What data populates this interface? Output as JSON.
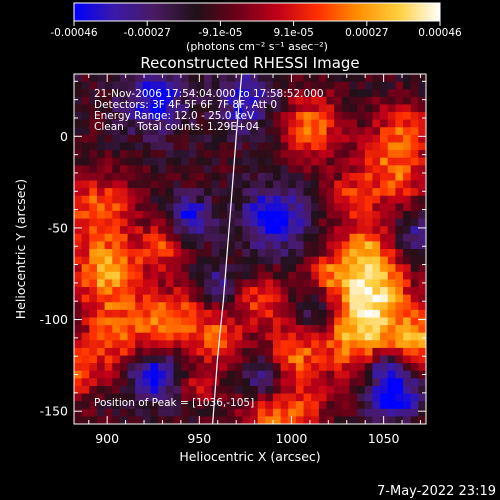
{
  "colorbar": {
    "tick_labels": [
      "-0.00046",
      "-0.00027",
      "-9.1e-05",
      "9.1e-05",
      "0.00027",
      "0.00046"
    ],
    "unit_label": "(photons cm⁻² s⁻¹ asec⁻²)",
    "colors": [
      "#0000ff",
      "#3a1aa8",
      "#4a1a60",
      "#201018",
      "#6a0018",
      "#c00018",
      "#ff3000",
      "#ff9000",
      "#ffd040",
      "#ffffff"
    ]
  },
  "chart_data": {
    "type": "heatmap",
    "title": "Reconstructed RHESSI Image",
    "xlabel": "Heliocentric X (arcsec)",
    "ylabel": "Heliocentric Y (arcsec)",
    "xlim": [
      882,
      1073
    ],
    "ylim": [
      -157,
      34
    ],
    "xticks": [
      900,
      950,
      1000,
      1050
    ],
    "yticks": [
      0,
      -50,
      -100,
      -150
    ],
    "limb_curve": [
      [
        957,
        -160
      ],
      [
        960,
        -120
      ],
      [
        963,
        -90
      ],
      [
        967,
        -40
      ],
      [
        970,
        0
      ],
      [
        973,
        34
      ]
    ],
    "peak": [
      1036,
      -105
    ],
    "grid_cols": 46,
    "grid_rows": 46,
    "blobs": [
      [
        1036,
        -105,
        18,
        1.0
      ],
      [
        1045,
        -80,
        14,
        0.75
      ],
      [
        1010,
        5,
        12,
        0.75
      ],
      [
        1055,
        -20,
        14,
        0.7
      ],
      [
        1040,
        -60,
        10,
        0.6
      ],
      [
        895,
        -40,
        14,
        0.7
      ],
      [
        900,
        -75,
        14,
        0.85
      ],
      [
        905,
        -110,
        14,
        0.65
      ],
      [
        935,
        -100,
        12,
        0.75
      ],
      [
        960,
        -110,
        10,
        0.6
      ],
      [
        985,
        -90,
        10,
        0.6
      ],
      [
        1000,
        -120,
        10,
        0.65
      ],
      [
        985,
        -155,
        10,
        0.55
      ],
      [
        1005,
        -150,
        10,
        0.6
      ],
      [
        1060,
        5,
        10,
        0.55
      ],
      [
        1030,
        -35,
        9,
        0.5
      ],
      [
        930,
        -60,
        9,
        0.55
      ],
      [
        880,
        -130,
        10,
        0.65
      ],
      [
        950,
        -135,
        8,
        0.45
      ],
      [
        1070,
        -110,
        10,
        0.75
      ],
      [
        1020,
        -75,
        8,
        0.5
      ],
      [
        945,
        -45,
        8,
        -0.7
      ],
      [
        990,
        -45,
        12,
        -0.8
      ],
      [
        925,
        20,
        12,
        -0.7
      ],
      [
        975,
        20,
        12,
        -0.6
      ],
      [
        1015,
        -95,
        10,
        -0.6
      ],
      [
        1055,
        -140,
        10,
        -0.9
      ],
      [
        985,
        -130,
        8,
        -0.5
      ],
      [
        925,
        -130,
        10,
        -0.8
      ],
      [
        1050,
        -125,
        6,
        -0.6
      ],
      [
        960,
        -80,
        8,
        -0.4
      ],
      [
        1070,
        -55,
        10,
        -0.5
      ]
    ],
    "annotations": [
      "21-Nov-2006 17:54:04.000 to 17:58:52.000",
      "Detectors: 3F 4F 5F 6F 7F 8F, Att 0",
      "Energy Range: 12.0 - 25.0 keV",
      "Clean    Total counts: 1.29E+04"
    ],
    "peak_label": "Position of Peak = [1036,-105]"
  },
  "footer": {
    "timestamp": "7-May-2022 23:19"
  }
}
